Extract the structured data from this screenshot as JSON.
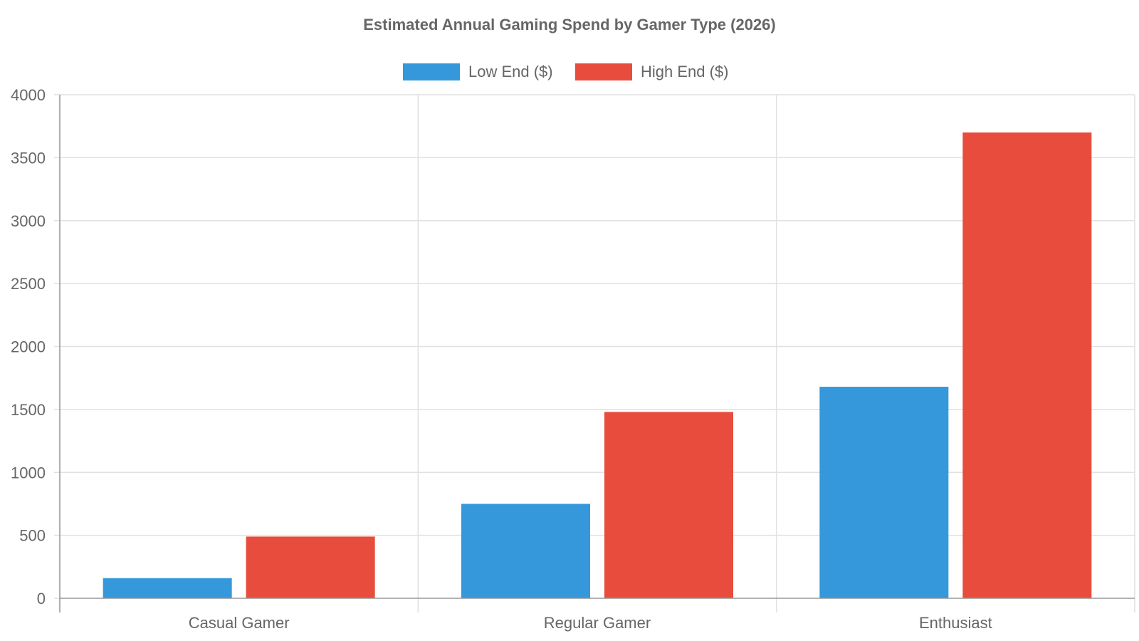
{
  "chart_data": {
    "type": "bar",
    "title": "Estimated Annual Gaming Spend by Gamer Type (2026)",
    "xlabel": "",
    "ylabel": "",
    "categories": [
      "Casual Gamer",
      "Regular Gamer",
      "Enthusiast"
    ],
    "series": [
      {
        "name": "Low End ($)",
        "color": "#3498db",
        "values": [
          160,
          750,
          1680
        ]
      },
      {
        "name": "High End ($)",
        "color": "#e74c3c",
        "values": [
          490,
          1480,
          3700
        ]
      }
    ],
    "ylim": [
      0,
      4000
    ],
    "yticks": [
      "0",
      "500",
      "1000",
      "1500",
      "2000",
      "2500",
      "3000",
      "3500",
      "4000"
    ],
    "grid": true,
    "legend_position": "top-center"
  }
}
